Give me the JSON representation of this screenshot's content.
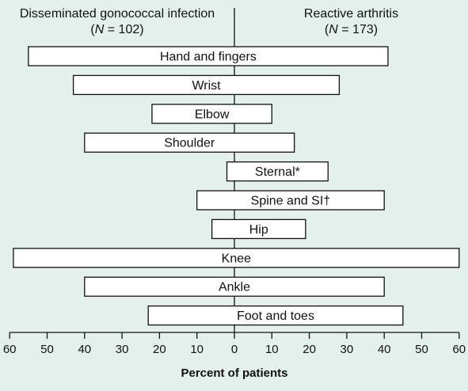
{
  "chart_data": {
    "type": "bar",
    "orientation": "horizontal-butterfly",
    "left_series": {
      "name": "Disseminated gonococcal infection",
      "n_italic": "N",
      "n_rest": " = 102)"
    },
    "right_series": {
      "name": "Reactive arthritis",
      "n_italic": "N",
      "n_rest": " = 173)"
    },
    "categories": [
      "Hand and fingers",
      "Wrist",
      "Elbow",
      "Shoulder",
      "Sternal*",
      "Spine and SI†",
      "Hip",
      "Knee",
      "Ankle",
      "Foot and toes"
    ],
    "left_values": [
      55,
      43,
      22,
      40,
      2,
      10,
      6,
      59,
      40,
      23
    ],
    "right_values": [
      41,
      28,
      10,
      16,
      25,
      40,
      19,
      60,
      40,
      45
    ],
    "xlabel": "Percent of patients",
    "xticks": [
      "60",
      "50",
      "40",
      "30",
      "20",
      "10",
      "0",
      "10",
      "20",
      "30",
      "40",
      "50",
      "60"
    ],
    "xlim": [
      -60,
      60
    ],
    "colors": {
      "background": "#e3f0ec",
      "bar_fill": "#ffffff",
      "stroke": "#111111"
    }
  }
}
